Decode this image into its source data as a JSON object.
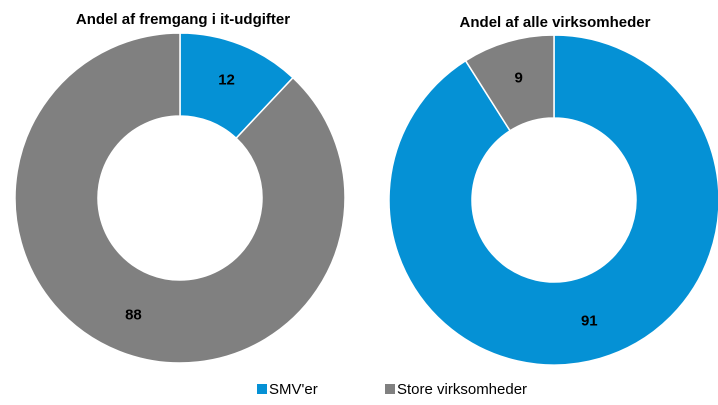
{
  "chart_data": [
    {
      "type": "pie",
      "donut": true,
      "title": "Andel af fremgang i it-udgifter",
      "categories": [
        "SMV'er",
        "Store virksomheder"
      ],
      "values": [
        12,
        88
      ],
      "colors": [
        "#0591d5",
        "#808080"
      ]
    },
    {
      "type": "pie",
      "donut": true,
      "title": "Andel af alle virksomheder",
      "categories": [
        "SMV'er",
        "Store virksomheder"
      ],
      "values": [
        91,
        9
      ],
      "colors": [
        "#0591d5",
        "#808080"
      ]
    }
  ]
}
